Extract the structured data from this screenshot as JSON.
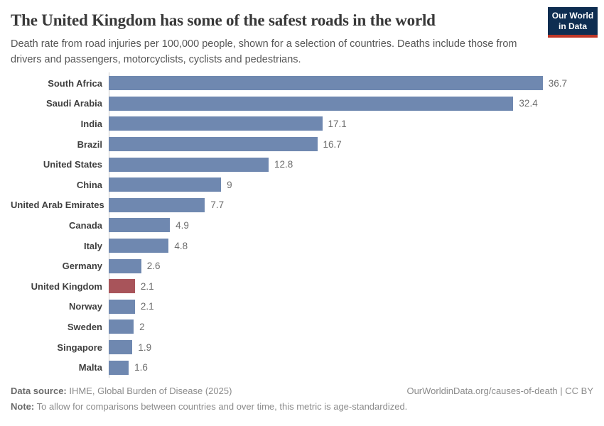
{
  "header": {
    "title": "The United Kingdom has some of the safest roads in the world",
    "subtitle": "Death rate from road injuries per 100,000 people, shown for a selection of countries. Deaths include those from drivers and passengers, motorcyclists, cyclists and pedestrians.",
    "logo": {
      "line1": "Our World",
      "line2": "in Data",
      "bg_color": "#0E2D51",
      "accent_color": "#BF3627"
    }
  },
  "chart_data": {
    "type": "bar",
    "orientation": "horizontal",
    "title": "The United Kingdom has some of the safest roads in the world",
    "xlabel": "Death rate from road injuries per 100,000 people",
    "categories": [
      "South Africa",
      "Saudi Arabia",
      "India",
      "Brazil",
      "United States",
      "China",
      "United Arab Emirates",
      "Canada",
      "Italy",
      "Germany",
      "United Kingdom",
      "Norway",
      "Sweden",
      "Singapore",
      "Malta"
    ],
    "values": [
      36.7,
      32.4,
      17.1,
      16.7,
      12.8,
      9,
      7.7,
      4.9,
      4.8,
      2.6,
      2.1,
      2.1,
      2,
      1.9,
      1.6
    ],
    "value_labels": [
      "36.7",
      "32.4",
      "17.1",
      "16.7",
      "12.8",
      "9",
      "7.7",
      "4.9",
      "4.8",
      "2.6",
      "2.1",
      "2.1",
      "2",
      "1.9",
      "1.6"
    ],
    "highlight_category": "United Kingdom",
    "bar_color": "#6F88B0",
    "highlight_color": "#A8545A",
    "xlim": [
      0,
      36.7
    ],
    "grid": false,
    "legend": "none"
  },
  "footer": {
    "datasource_label": "Data source:",
    "datasource_text": " IHME, Global Burden of Disease (2025)",
    "license_text": "OurWorldinData.org/causes-of-death | CC BY",
    "note_label": "Note:",
    "note_text": " To allow for comparisons between countries and over time, this metric is age-standardized."
  }
}
